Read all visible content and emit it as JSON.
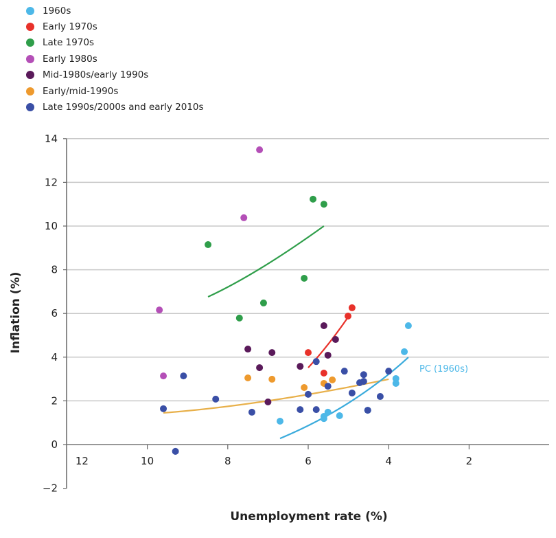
{
  "chart_data": {
    "type": "scatter",
    "title": "",
    "xlabel": "Unemployment rate (%)",
    "ylabel": "Inflation (%)",
    "xlim": [
      12,
      0
    ],
    "x_reversed": true,
    "ylim": [
      -2,
      14
    ],
    "xticks": [
      "12",
      "10",
      "8",
      "6",
      "4",
      "2"
    ],
    "xtick_values": [
      12,
      10,
      8,
      6,
      4,
      2
    ],
    "yticks": [
      "14",
      "12",
      "10",
      "8",
      "6",
      "4",
      "2",
      "0",
      "−2"
    ],
    "ytick_values": [
      14,
      12,
      10,
      8,
      6,
      4,
      2,
      0,
      -2
    ],
    "grid": "horizontal",
    "legend_position": "top-left",
    "series": [
      {
        "name": "1960s",
        "color": "#4db8e8",
        "points": [
          [
            3.51,
            5.44
          ],
          [
            3.61,
            4.25
          ],
          [
            3.82,
            3.02
          ],
          [
            3.82,
            2.8
          ],
          [
            4.52,
            1.57
          ],
          [
            5.22,
            1.32
          ],
          [
            5.51,
            1.48
          ],
          [
            5.61,
            1.29
          ],
          [
            5.61,
            1.19
          ],
          [
            6.7,
            1.07
          ]
        ]
      },
      {
        "name": "Early 1970s",
        "color": "#e8312a",
        "points": [
          [
            4.91,
            6.26
          ],
          [
            5.01,
            5.88
          ],
          [
            6.0,
            4.21
          ],
          [
            5.61,
            3.27
          ]
        ]
      },
      {
        "name": "Late 1970s",
        "color": "#2f9e4a",
        "points": [
          [
            5.88,
            11.23
          ],
          [
            5.61,
            11.0
          ],
          [
            8.49,
            9.15
          ],
          [
            6.1,
            7.61
          ],
          [
            7.11,
            6.48
          ],
          [
            7.71,
            5.79
          ]
        ]
      },
      {
        "name": "Early 1980s",
        "color": "#b44fb7",
        "points": [
          [
            7.21,
            13.49
          ],
          [
            7.6,
            10.38
          ],
          [
            9.7,
            6.16
          ],
          [
            9.6,
            3.14
          ]
        ]
      },
      {
        "name": "Mid-1980s/early 1990s",
        "color": "#5a1a5a",
        "points": [
          [
            5.61,
            5.44
          ],
          [
            5.32,
            4.81
          ],
          [
            5.51,
            4.09
          ],
          [
            7.5,
            4.37
          ],
          [
            6.9,
            4.21
          ],
          [
            7.21,
            3.52
          ],
          [
            6.2,
            3.58
          ],
          [
            7.0,
            1.95
          ]
        ]
      },
      {
        "name": "Early/mid-1990s",
        "color": "#ee9a2e",
        "points": [
          [
            7.5,
            3.05
          ],
          [
            6.9,
            2.99
          ],
          [
            6.1,
            2.61
          ],
          [
            5.61,
            2.8
          ],
          [
            5.4,
            2.96
          ]
        ]
      },
      {
        "name": "Late 1990s/2000s and early 2010s",
        "color": "#3a4fa6",
        "points": [
          [
            5.8,
            3.8
          ],
          [
            5.1,
            3.36
          ],
          [
            4.62,
            3.2
          ],
          [
            4.62,
            2.89
          ],
          [
            4.72,
            2.83
          ],
          [
            4.0,
            3.36
          ],
          [
            4.21,
            2.2
          ],
          [
            4.91,
            2.36
          ],
          [
            6.0,
            2.3
          ],
          [
            5.51,
            2.67
          ],
          [
            6.2,
            1.6
          ],
          [
            5.8,
            1.6
          ],
          [
            4.52,
            1.57
          ],
          [
            9.1,
            3.14
          ],
          [
            8.3,
            2.08
          ],
          [
            9.6,
            1.64
          ],
          [
            7.4,
            1.48
          ],
          [
            9.3,
            -0.31
          ]
        ]
      }
    ],
    "curves": [
      {
        "series": "Late 1970s",
        "color": "#2f9e4a",
        "points": [
          [
            8.49,
            6.76
          ],
          [
            7.17,
            8.08
          ],
          [
            5.61,
            10.0
          ]
        ]
      },
      {
        "series": "Early 1970s",
        "color": "#e8312a",
        "points": [
          [
            6.0,
            3.52
          ],
          [
            5.5,
            4.6
          ],
          [
            4.99,
            5.88
          ]
        ]
      },
      {
        "series": "Early/mid-1990s",
        "color": "#e8b04a",
        "points": [
          [
            9.6,
            1.45
          ],
          [
            7.0,
            2.0
          ],
          [
            4.0,
            2.99
          ]
        ]
      },
      {
        "series": "1960s",
        "color": "#3aabdc",
        "points": [
          [
            6.7,
            0.28
          ],
          [
            5.0,
            1.9
          ],
          [
            3.51,
            3.99
          ]
        ],
        "label": "PC (1960s)"
      }
    ]
  }
}
